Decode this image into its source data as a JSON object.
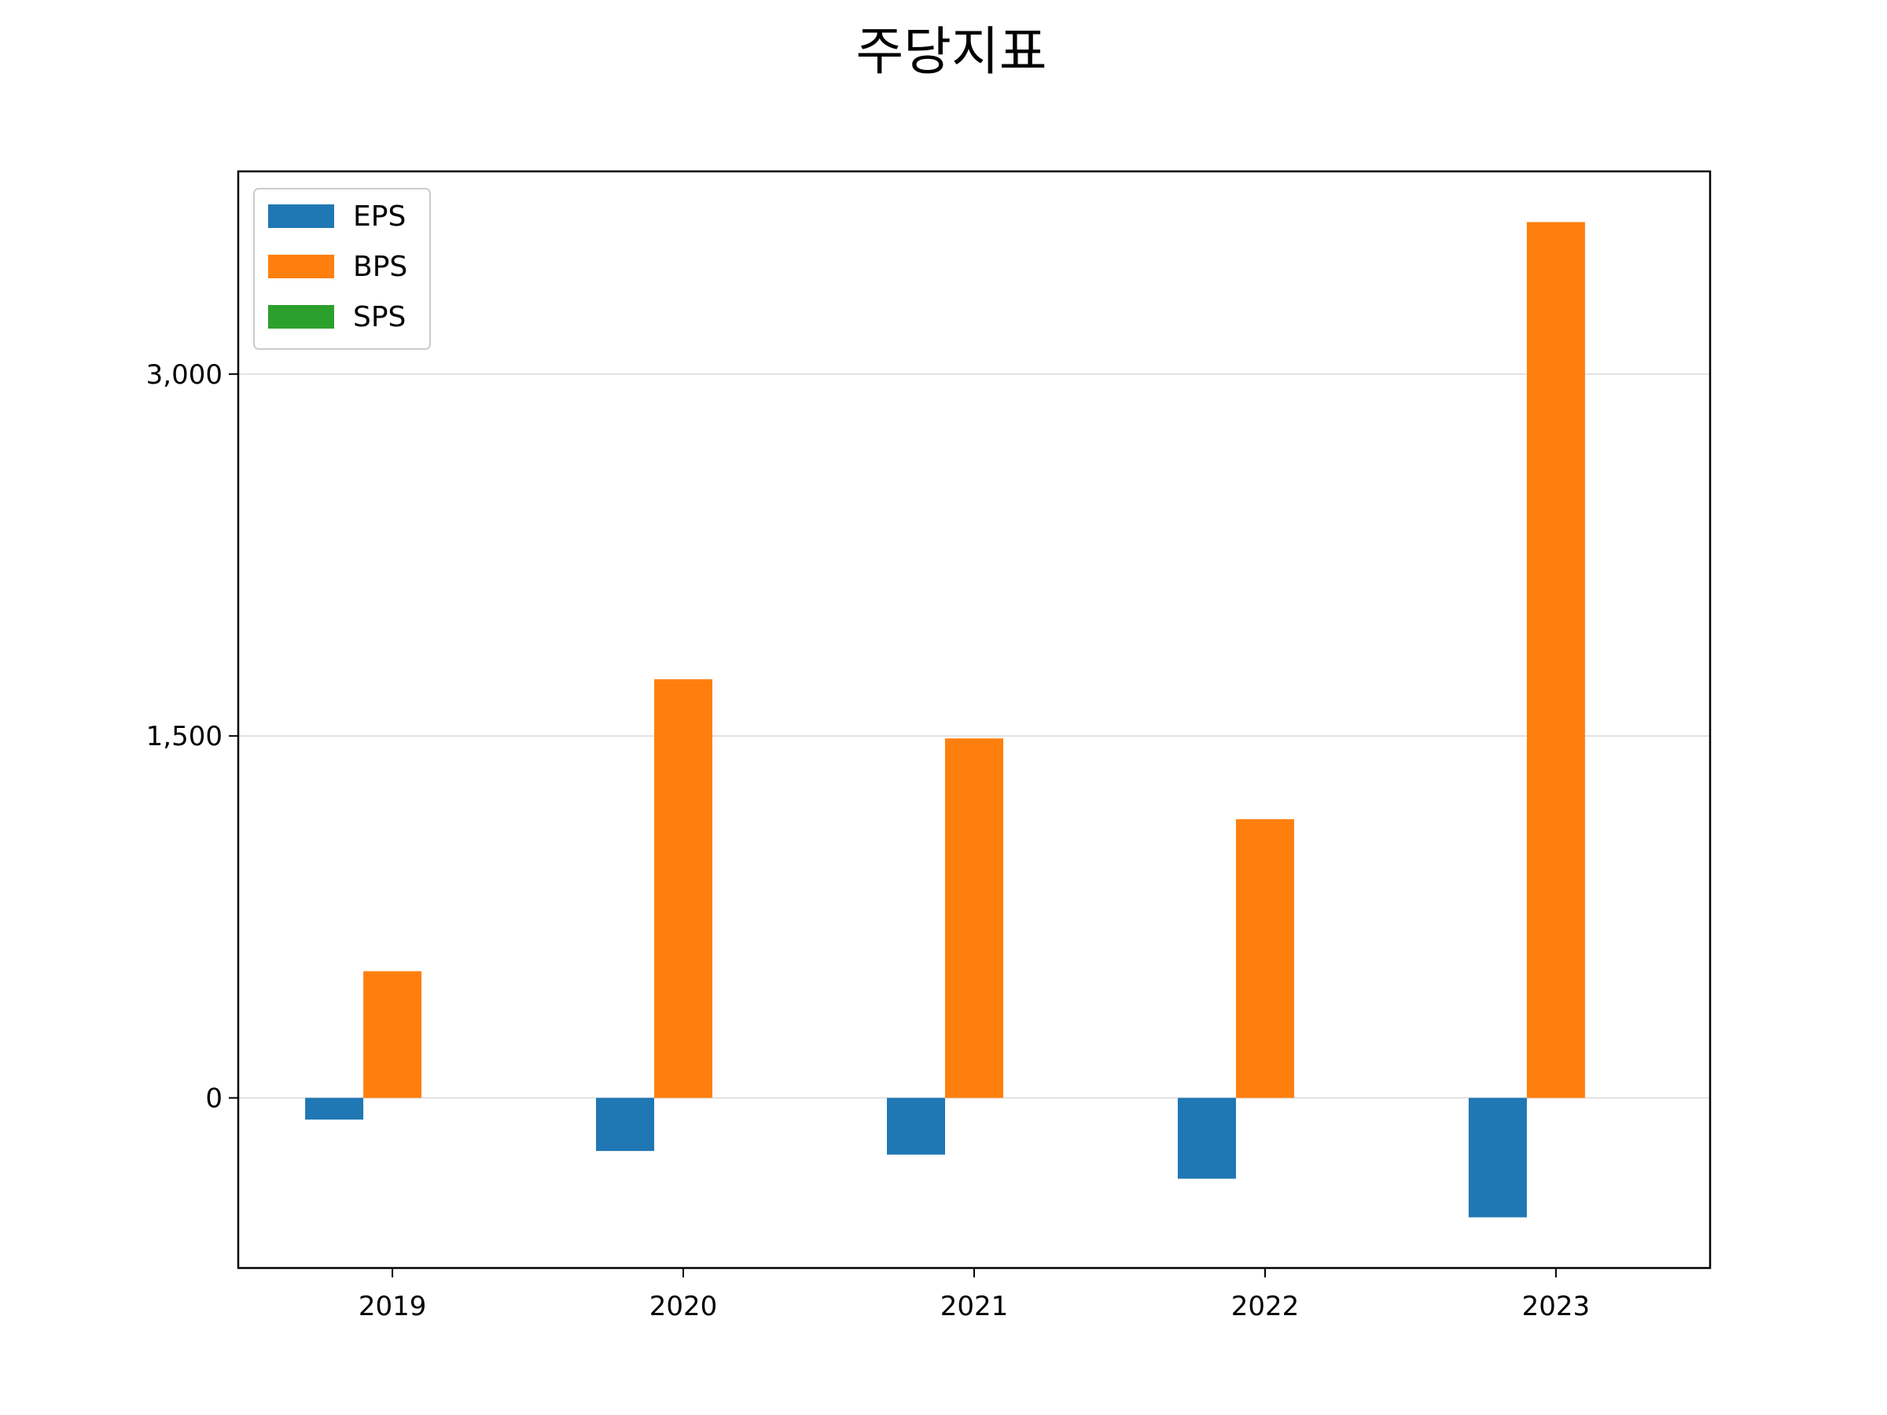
{
  "chart_data": {
    "type": "bar",
    "title": "주당지표",
    "xlabel": "",
    "ylabel": "",
    "categories": [
      "2019",
      "2020",
      "2021",
      "2022",
      "2023"
    ],
    "series": [
      {
        "name": "EPS",
        "color": "#1f77b4",
        "values": [
          -90,
          -220,
          -235,
          -335,
          -495
        ]
      },
      {
        "name": "BPS",
        "color": "#ff7f0e",
        "values": [
          525,
          1735,
          1490,
          1155,
          3630
        ]
      },
      {
        "name": "SPS",
        "color": "#2ca02c",
        "values": [
          0,
          0,
          0,
          0,
          0
        ]
      }
    ],
    "yticks": [
      0,
      1500,
      3000
    ],
    "ytick_labels": [
      "0",
      "1,500",
      "3,000"
    ],
    "ylim": [
      -705,
      3840
    ],
    "grid": "y",
    "legend_position": "top-left"
  }
}
